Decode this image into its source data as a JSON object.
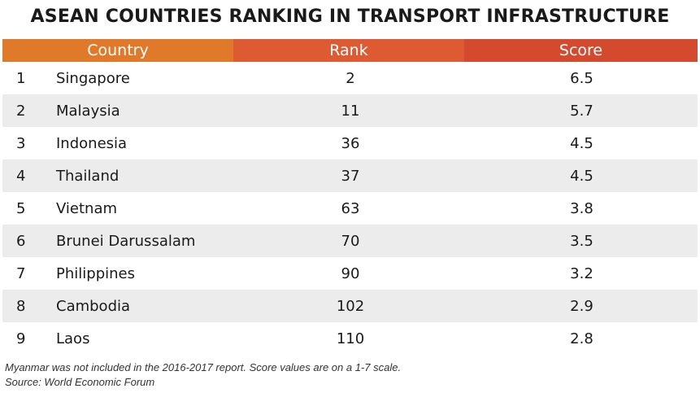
{
  "chart_data": {
    "type": "table",
    "title": "ASEAN COUNTRIES RANKING IN TRANSPORT INFRASTRUCTURE",
    "columns": [
      "",
      "Country",
      "Rank",
      "Score"
    ],
    "header": {
      "country": "Country",
      "rank": "Rank",
      "score": "Score"
    },
    "rows": [
      {
        "num": "1",
        "country": "Singapore",
        "rank": "2",
        "score": "6.5"
      },
      {
        "num": "2",
        "country": "Malaysia",
        "rank": "11",
        "score": "5.7"
      },
      {
        "num": "3",
        "country": "Indonesia",
        "rank": "36",
        "score": "4.5"
      },
      {
        "num": "4",
        "country": "Thailand",
        "rank": "37",
        "score": "4.5"
      },
      {
        "num": "5",
        "country": "Vietnam",
        "rank": "63",
        "score": "3.8"
      },
      {
        "num": "6",
        "country": "Brunei Darussalam",
        "rank": "70",
        "score": "3.5"
      },
      {
        "num": "7",
        "country": "Philippines",
        "rank": "90",
        "score": "3.2"
      },
      {
        "num": "8",
        "country": "Cambodia",
        "rank": "102",
        "score": "2.9"
      },
      {
        "num": "9",
        "country": "Laos",
        "rank": "110",
        "score": "2.8"
      }
    ],
    "footnote": "Myanmar was not included in the 2016-2017 report. Score values are on a 1-7 scale.",
    "source": "Source: World Economic Forum"
  },
  "colors": {
    "header_left": "#e07a2a",
    "header_mid": "#dd5a33",
    "header_right": "#d34a2e",
    "row_alt": "#ececec"
  }
}
